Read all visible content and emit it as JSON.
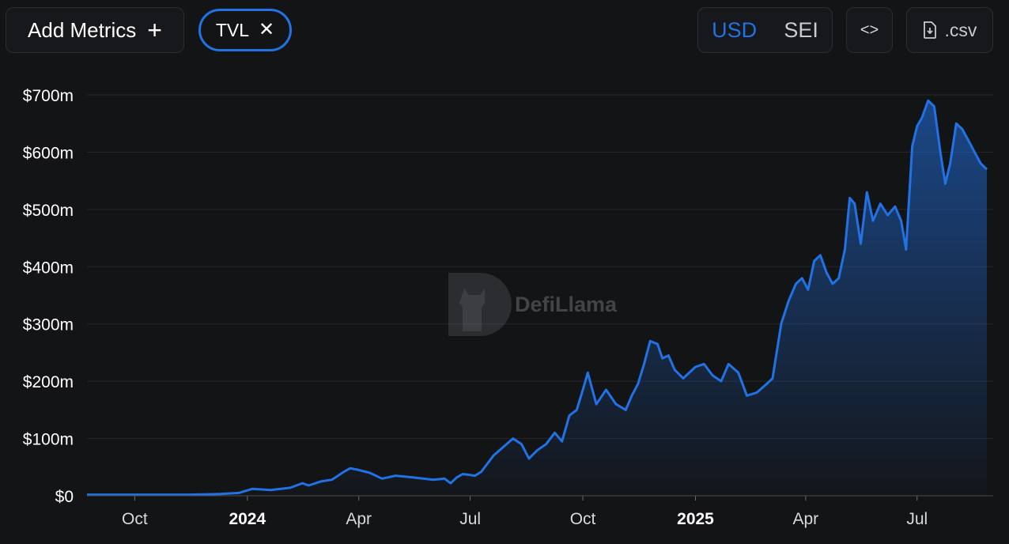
{
  "toolbar": {
    "add_metrics_label": "Add Metrics",
    "add_icon": "plus-icon",
    "metric_chip_label": "TVL",
    "remove_icon": "close-icon",
    "denominations": [
      "USD",
      "SEI"
    ],
    "active_denomination": "USD",
    "embed_icon": "code-icon",
    "csv_label": ".csv",
    "download_icon": "file-download-icon"
  },
  "watermark": {
    "text": "DefiLlama"
  },
  "colors": {
    "line": "#2172e5",
    "background": "#131416",
    "grid": "#25272b"
  },
  "chart_data": {
    "type": "area",
    "series": [
      {
        "name": "TVL",
        "x": [
          "2023-08-23",
          "2023-09-15",
          "2023-10-15",
          "2023-11-15",
          "2023-12-10",
          "2023-12-25",
          "2024-01-05",
          "2024-01-20",
          "2024-02-05",
          "2024-02-15",
          "2024-02-20",
          "2024-03-01",
          "2024-03-10",
          "2024-03-20",
          "2024-03-25",
          "2024-04-01",
          "2024-04-10",
          "2024-04-20",
          "2024-05-01",
          "2024-05-15",
          "2024-06-01",
          "2024-06-10",
          "2024-06-15",
          "2024-06-20",
          "2024-06-25",
          "2024-07-05",
          "2024-07-10",
          "2024-07-20",
          "2024-07-28",
          "2024-08-05",
          "2024-08-12",
          "2024-08-18",
          "2024-08-25",
          "2024-09-01",
          "2024-09-08",
          "2024-09-14",
          "2024-09-20",
          "2024-09-26",
          "2024-10-01",
          "2024-10-05",
          "2024-10-12",
          "2024-10-20",
          "2024-10-28",
          "2024-11-05",
          "2024-11-10",
          "2024-11-15",
          "2024-11-20",
          "2024-11-25",
          "2024-12-01",
          "2024-12-05",
          "2024-12-10",
          "2024-12-15",
          "2024-12-22",
          "2025-01-01",
          "2025-01-08",
          "2025-01-15",
          "2025-01-22",
          "2025-01-28",
          "2025-02-05",
          "2025-02-12",
          "2025-02-20",
          "2025-02-28",
          "2025-03-05",
          "2025-03-12",
          "2025-03-18",
          "2025-03-24",
          "2025-03-29",
          "2025-04-03",
          "2025-04-08",
          "2025-04-13",
          "2025-04-18",
          "2025-04-23",
          "2025-04-28",
          "2025-05-03",
          "2025-05-07",
          "2025-05-11",
          "2025-05-16",
          "2025-05-21",
          "2025-05-26",
          "2025-06-01",
          "2025-06-07",
          "2025-06-13",
          "2025-06-18",
          "2025-06-22",
          "2025-06-27",
          "2025-07-01",
          "2025-07-05",
          "2025-07-10",
          "2025-07-15",
          "2025-07-20",
          "2025-07-24",
          "2025-07-28",
          "2025-08-02",
          "2025-08-07",
          "2025-08-12",
          "2025-08-17",
          "2025-08-22",
          "2025-08-27"
        ],
        "y": [
          2,
          2,
          2,
          2,
          3,
          5,
          12,
          10,
          14,
          22,
          18,
          25,
          28,
          42,
          48,
          45,
          40,
          30,
          35,
          32,
          28,
          30,
          22,
          32,
          38,
          35,
          42,
          70,
          85,
          100,
          90,
          65,
          80,
          90,
          110,
          95,
          140,
          150,
          185,
          215,
          160,
          185,
          160,
          150,
          175,
          195,
          230,
          270,
          265,
          240,
          245,
          220,
          205,
          225,
          230,
          210,
          200,
          230,
          215,
          175,
          180,
          195,
          205,
          300,
          340,
          370,
          380,
          360,
          410,
          420,
          390,
          370,
          380,
          430,
          520,
          510,
          440,
          530,
          480,
          510,
          490,
          505,
          480,
          430,
          610,
          645,
          660,
          690,
          680,
          600,
          545,
          580,
          650,
          640,
          620,
          600,
          580,
          570
        ]
      }
    ],
    "ylim": [
      0,
      700
    ],
    "y_ticks": [
      0,
      100,
      200,
      300,
      400,
      500,
      600,
      700
    ],
    "y_tick_labels": [
      "$0",
      "$100m",
      "$200m",
      "$300m",
      "$400m",
      "$500m",
      "$600m",
      "$700m"
    ],
    "x_ticks": [
      {
        "date": "2023-10-01",
        "label": "Oct",
        "year": false
      },
      {
        "date": "2024-01-01",
        "label": "2024",
        "year": true
      },
      {
        "date": "2024-04-01",
        "label": "Apr",
        "year": false
      },
      {
        "date": "2024-07-01",
        "label": "Jul",
        "year": false
      },
      {
        "date": "2024-10-01",
        "label": "Oct",
        "year": false
      },
      {
        "date": "2025-01-01",
        "label": "2025",
        "year": true
      },
      {
        "date": "2025-04-01",
        "label": "Apr",
        "year": false
      },
      {
        "date": "2025-07-01",
        "label": "Jul",
        "year": false
      }
    ],
    "grid": true
  }
}
